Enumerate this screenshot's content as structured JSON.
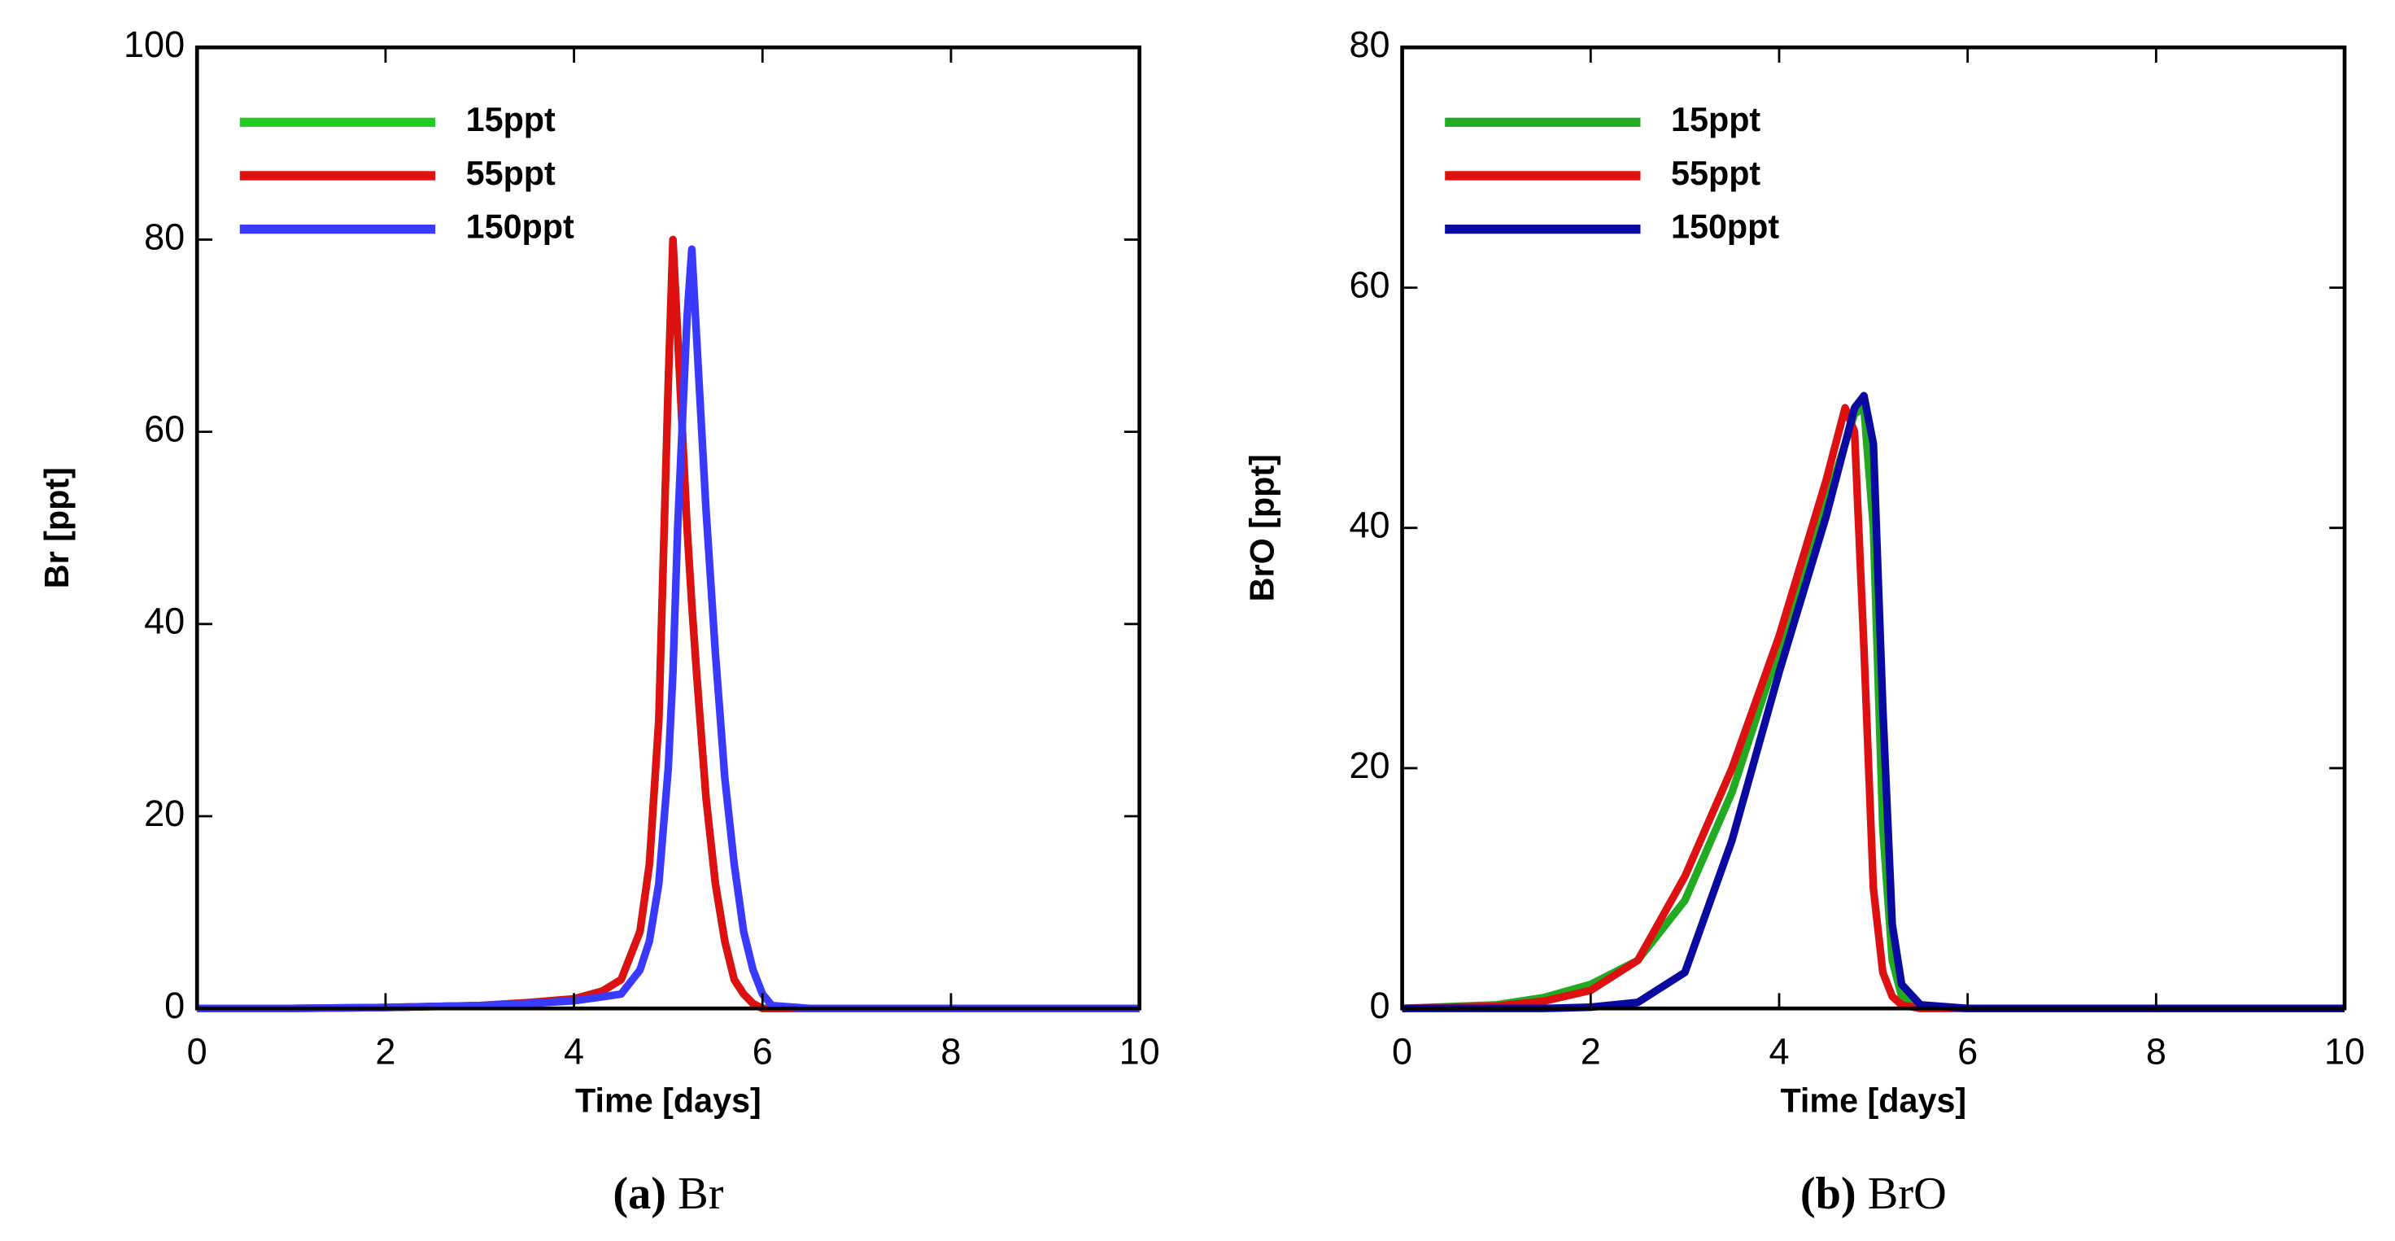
{
  "chart_data": [
    {
      "type": "line",
      "subcaption": {
        "label": "(a)",
        "text": "Br"
      },
      "xlabel": "Time [days]",
      "ylabel": "Br [ppt]",
      "xlim": [
        0,
        10
      ],
      "xticks": [
        0,
        2,
        4,
        6,
        8,
        10
      ],
      "ylim": [
        0,
        100
      ],
      "yticks": [
        0,
        20,
        40,
        60,
        80,
        100
      ],
      "grid": false,
      "legend": "upper-left",
      "x": [
        0,
        1,
        2,
        3,
        3.5,
        4,
        4.3,
        4.5,
        4.7,
        4.8,
        4.9,
        5,
        5.05,
        5.1,
        5.2,
        5.25,
        5.3,
        5.4,
        5.5,
        5.6,
        5.7,
        5.8,
        5.9,
        6,
        6.1,
        6.5,
        7,
        8,
        9,
        10
      ],
      "series": [
        {
          "name": "15ppt",
          "color": "#22cc22",
          "values": [
            0,
            0,
            0.1,
            0.3,
            0.6,
            1,
            1.8,
            3,
            8,
            15,
            30,
            65,
            80,
            70,
            50,
            42,
            35,
            22,
            13,
            7,
            3,
            1.5,
            0.5,
            0,
            0,
            0,
            0,
            0,
            0,
            0
          ]
        },
        {
          "name": "55ppt",
          "color": "#dd1111",
          "values": [
            0,
            0,
            0.1,
            0.3,
            0.6,
            1,
            1.8,
            3,
            8,
            15,
            30,
            65,
            80,
            70,
            50,
            42,
            35,
            22,
            13,
            7,
            3,
            1.5,
            0.5,
            0,
            0,
            0,
            0,
            0,
            0,
            0
          ]
        },
        {
          "name": "150ppt",
          "color": "#3a3aff",
          "values": [
            0,
            0,
            0.1,
            0.3,
            0.5,
            0.8,
            1.2,
            1.5,
            4,
            7,
            13,
            25,
            35,
            50,
            72,
            79,
            70,
            52,
            37,
            24,
            15,
            8,
            4,
            1.5,
            0.3,
            0,
            0,
            0,
            0,
            0
          ]
        }
      ]
    },
    {
      "type": "line",
      "subcaption": {
        "label": "(b)",
        "text": "BrO"
      },
      "xlabel": "Time [days]",
      "ylabel": "BrO [ppt]",
      "xlim": [
        0,
        10
      ],
      "xticks": [
        0,
        2,
        4,
        6,
        8,
        10
      ],
      "ylim": [
        0,
        80
      ],
      "yticks": [
        0,
        20,
        40,
        60,
        80
      ],
      "grid": false,
      "legend": "upper-left",
      "x": [
        0,
        1,
        1.5,
        2,
        2.5,
        3,
        3.5,
        4,
        4.5,
        4.7,
        4.8,
        4.9,
        5,
        5.1,
        5.2,
        5.3,
        5.5,
        6,
        7,
        8,
        9,
        10
      ],
      "series": [
        {
          "name": "15ppt",
          "color": "#22aa22",
          "values": [
            0,
            0.3,
            0.9,
            2,
            4,
            9,
            18,
            30,
            42,
            47,
            49.5,
            50,
            40,
            15,
            4,
            1,
            0.2,
            0,
            0,
            0,
            0,
            0
          ]
        },
        {
          "name": "55ppt",
          "color": "#dd1111",
          "values": [
            0,
            0.2,
            0.6,
            1.5,
            4,
            11,
            20,
            31,
            44,
            50,
            48,
            30,
            10,
            3,
            1,
            0.3,
            0,
            0,
            0,
            0,
            0,
            0
          ]
        },
        {
          "name": "150ppt",
          "color": "#0a0aa0",
          "values": [
            0,
            0,
            0,
            0.1,
            0.5,
            3,
            14,
            28,
            41,
            47,
            50,
            51,
            47,
            25,
            7,
            2,
            0.3,
            0,
            0,
            0,
            0,
            0
          ]
        }
      ]
    }
  ]
}
